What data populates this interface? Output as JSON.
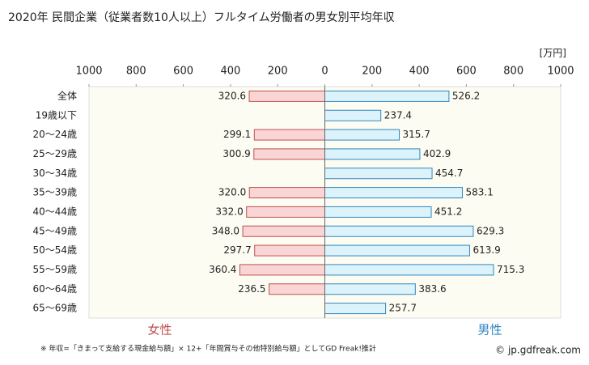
{
  "chart_data": {
    "type": "butterfly-bar",
    "title": "2020年 民間企業（従業者数10人以上）フルタイム労働者の男女別平均年収",
    "unit": "[万円]",
    "categories": [
      "全体",
      "19歳以下",
      "20～24歳",
      "25～29歳",
      "30～34歳",
      "35～39歳",
      "40～44歳",
      "45～49歳",
      "50～54歳",
      "55～59歳",
      "60～64歳",
      "65～69歳"
    ],
    "series": [
      {
        "name": "女性",
        "side": "left",
        "color": "#f9d5d5",
        "stroke": "#c0504d",
        "text_color": "#c0504d",
        "values": [
          320.6,
          null,
          299.1,
          300.9,
          null,
          320.0,
          332.0,
          348.0,
          297.7,
          360.4,
          236.5,
          null
        ],
        "value_labels": [
          "320.6",
          null,
          "299.1",
          "300.9",
          null,
          "320.0",
          "332.0",
          "348.0",
          "297.7",
          "360.4",
          "236.5",
          null
        ]
      },
      {
        "name": "男性",
        "side": "right",
        "color": "#ddf3fb",
        "stroke": "#2e86c1",
        "text_color": "#2e86c1",
        "values": [
          526.2,
          237.4,
          315.7,
          402.9,
          454.7,
          583.1,
          451.2,
          629.3,
          613.9,
          715.3,
          383.6,
          257.7
        ]
      }
    ],
    "xlim": [
      -1000,
      1000
    ],
    "xticks": [
      {
        "value": -1000,
        "label": "1000"
      },
      {
        "value": -800,
        "label": "800"
      },
      {
        "value": -600,
        "label": "600"
      },
      {
        "value": -400,
        "label": "400"
      },
      {
        "value": -200,
        "label": "200"
      },
      0,
      200,
      400,
      600,
      800,
      1000
    ],
    "footnote": "※ 年収=「きまって支給する現金給与額」× 12+「年間賞与その他特別給与額」としてGD Freak!推計",
    "credit": "© jp.gdfreak.com"
  }
}
